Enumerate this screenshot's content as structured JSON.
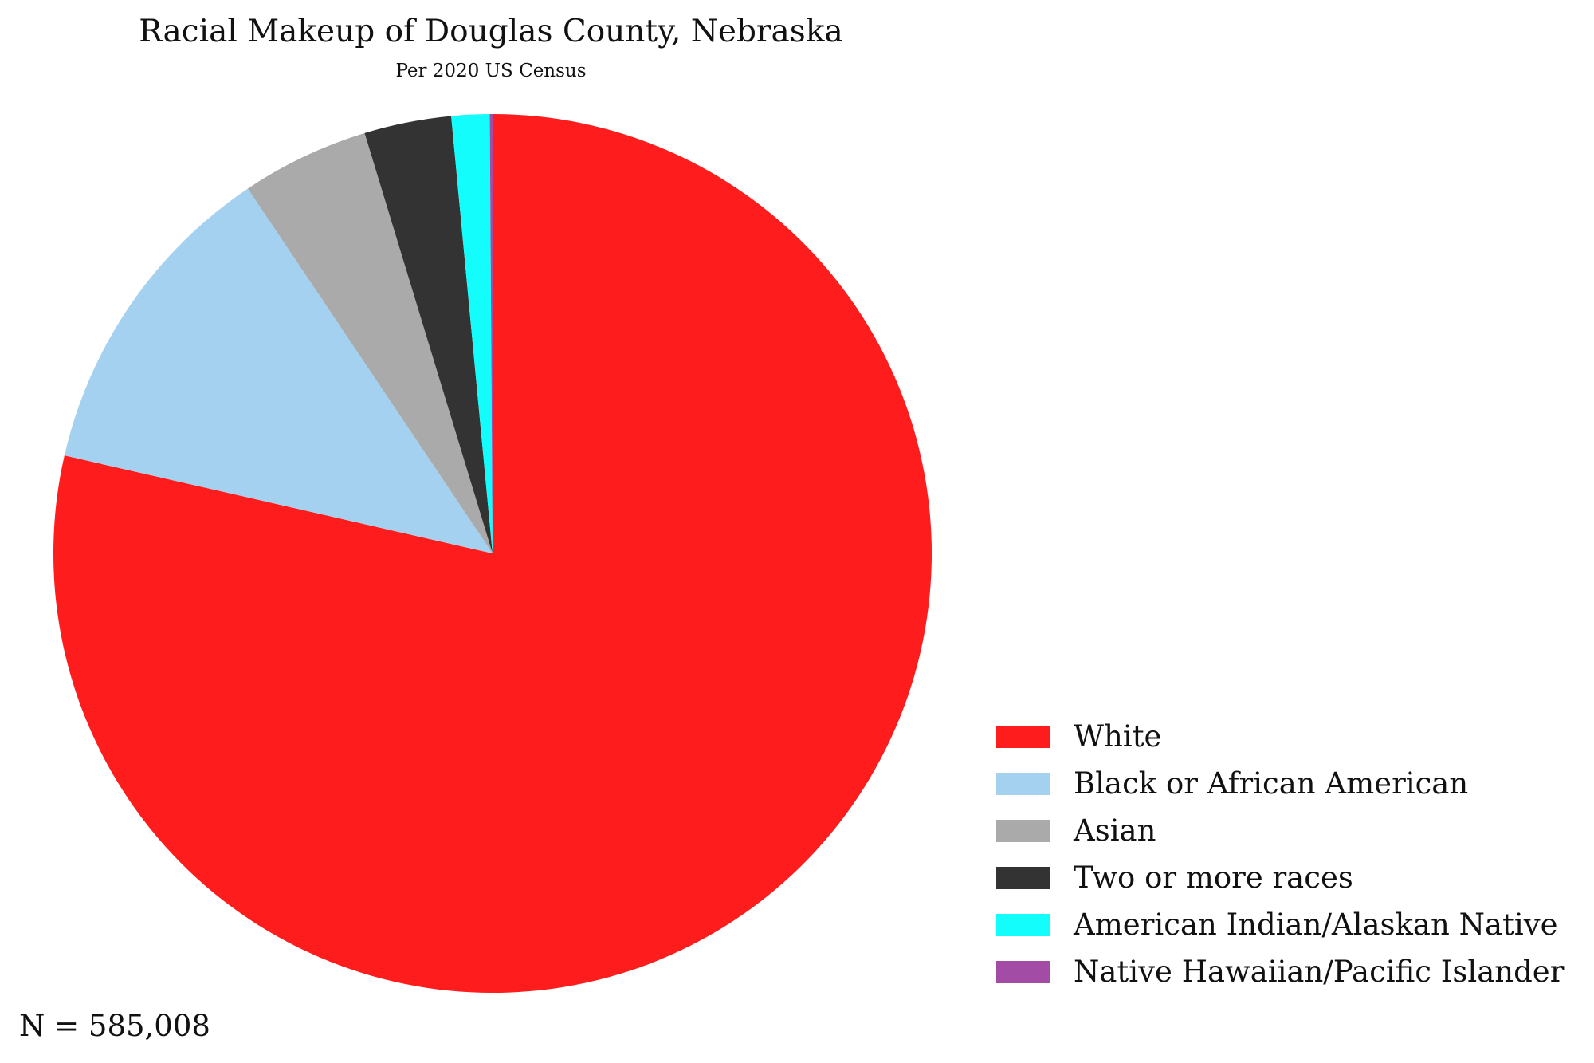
{
  "chart_data": {
    "type": "pie",
    "title": "Racial Makeup of Douglas County, Nebraska",
    "subtitle": "Per 2020 US Census",
    "note": "N = 585,008",
    "legend_position": "bottom-right",
    "start_angle_deg": 0,
    "direction": "clockwise",
    "slices": [
      {
        "label": "White",
        "value": 78.5,
        "color": "#fe1c1c"
      },
      {
        "label": "Black or African American",
        "value": 12.0,
        "color": "#a4d1ef"
      },
      {
        "label": "Asian",
        "value": 4.7,
        "color": "#aaaaaa"
      },
      {
        "label": "Two or more races",
        "value": 3.2,
        "color": "#333333"
      },
      {
        "label": "American Indian/Alaskan Native",
        "value": 1.4,
        "color": "#14fdfd"
      },
      {
        "label": "Native Hawaiian/Pacific Islander",
        "value": 0.1,
        "color": "#a24ca6"
      }
    ]
  }
}
